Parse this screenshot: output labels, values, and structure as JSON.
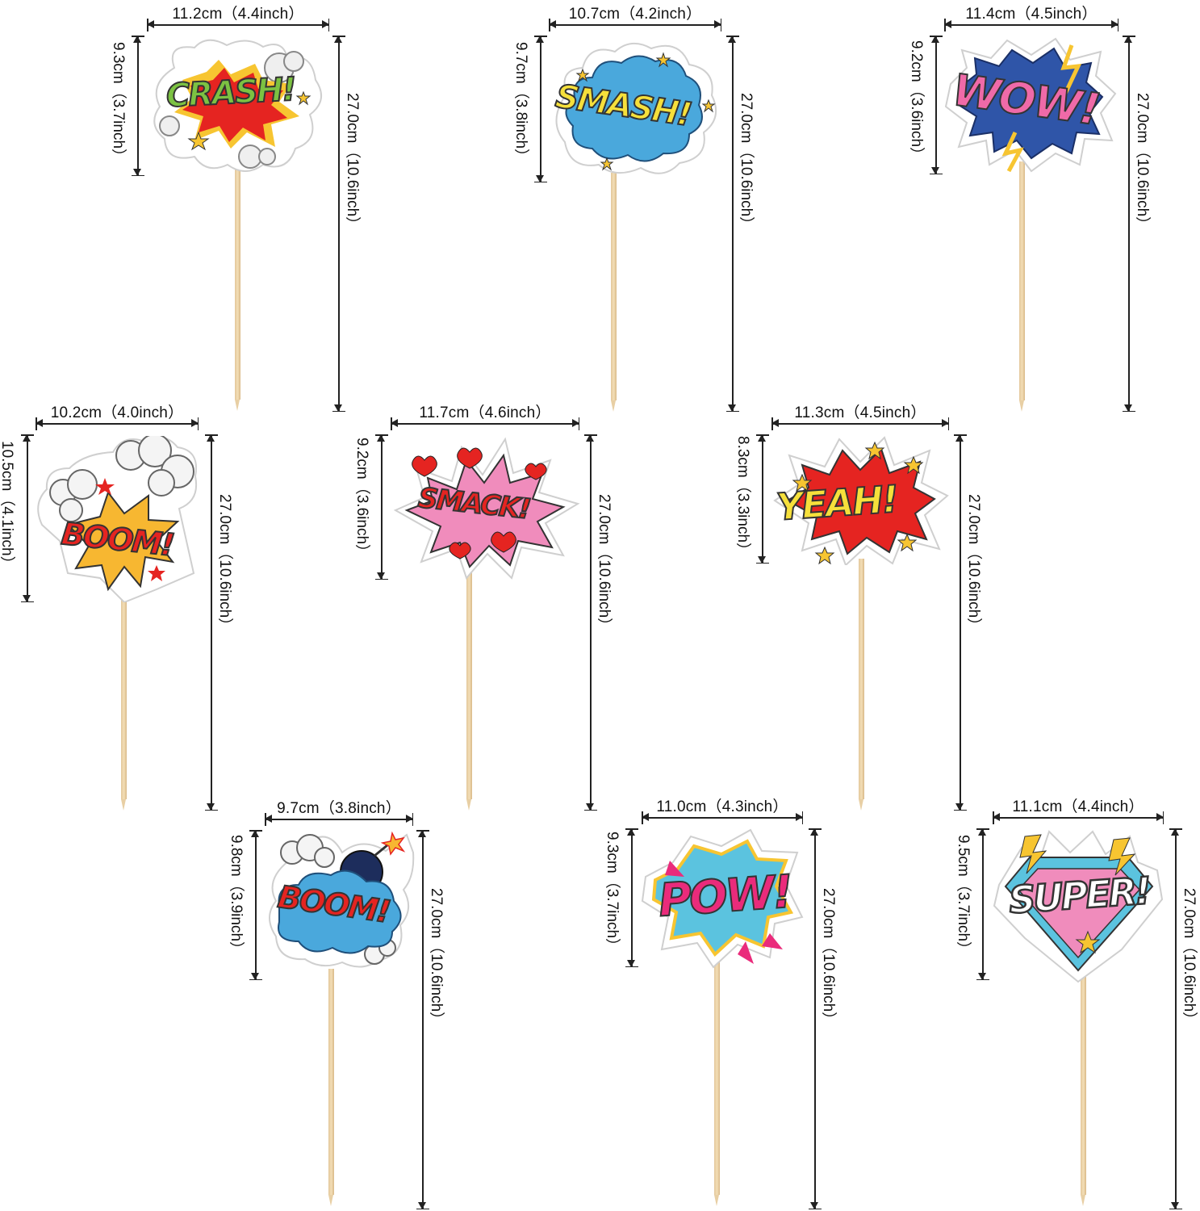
{
  "toppers": [
    {
      "id": "crash",
      "word": "CRASH!",
      "width": "11.2cm（4.4inch）",
      "height": "9.3cm（3.7inch）",
      "total": "27.0cm（10.6inch）",
      "colors": {
        "word": "#7cc242",
        "burst": "#e52421",
        "accent": "#f7c531"
      }
    },
    {
      "id": "smash",
      "word": "SMASH!",
      "width": "10.7cm（4.2inch）",
      "height": "9.7cm（3.8inch）",
      "total": "27.0cm（10.6inch）",
      "colors": {
        "word": "#f6e03b",
        "burst": "#4aa8dc",
        "accent": "#f7c531"
      }
    },
    {
      "id": "wow",
      "word": "WOW!",
      "width": "11.4cm（4.5inch）",
      "height": "9.2cm（3.6inch）",
      "total": "27.0cm（10.6inch）",
      "colors": {
        "word": "#ef6aa8",
        "burst": "#2f55a8",
        "accent": "#f7c531"
      }
    },
    {
      "id": "boom1",
      "word": "BOOM!",
      "width": "10.2cm（4.0inch）",
      "height": "10.5cm（4.1inch）",
      "total": "27.0cm（10.6inch）",
      "colors": {
        "word": "#e52421",
        "burst": "#f7b731",
        "accent": "#e52421"
      }
    },
    {
      "id": "smack",
      "word": "SMACK!",
      "width": "11.7cm（4.6inch）",
      "height": "9.2cm（3.6inch）",
      "total": "27.0cm（10.6inch）",
      "colors": {
        "word": "#e52421",
        "burst": "#f08cbc",
        "accent": "#e52421"
      }
    },
    {
      "id": "yeah",
      "word": "YEAH!",
      "width": "11.3cm（4.5inch）",
      "height": "8.3cm（3.3inch）",
      "total": "27.0cm（10.6inch）",
      "colors": {
        "word": "#f6e03b",
        "burst": "#e52421",
        "accent": "#f7c531"
      }
    },
    {
      "id": "boom2",
      "word": "BOOM!",
      "width": "9.7cm（3.8inch）",
      "height": "9.8cm（3.9inch）",
      "total": "27.0cm（10.6inch）",
      "colors": {
        "word": "#e52421",
        "burst": "#4aa8dc",
        "accent": "#1d2d5c"
      }
    },
    {
      "id": "pow",
      "word": "POW!",
      "width": "11.0cm（4.3inch）",
      "height": "9.3cm（3.7inch）",
      "total": "27.0cm（10.6inch）",
      "colors": {
        "word": "#ea2b7b",
        "burst": "#5bc3df",
        "accent": "#f7c531"
      }
    },
    {
      "id": "super",
      "word": "SUPER!",
      "width": "11.1cm（4.4inch）",
      "height": "9.5cm（3.7inch）",
      "total": "27.0cm（10.6inch）",
      "colors": {
        "word": "#ffffff",
        "burst": "#f08cbc",
        "accent": "#5bc3df"
      }
    }
  ]
}
